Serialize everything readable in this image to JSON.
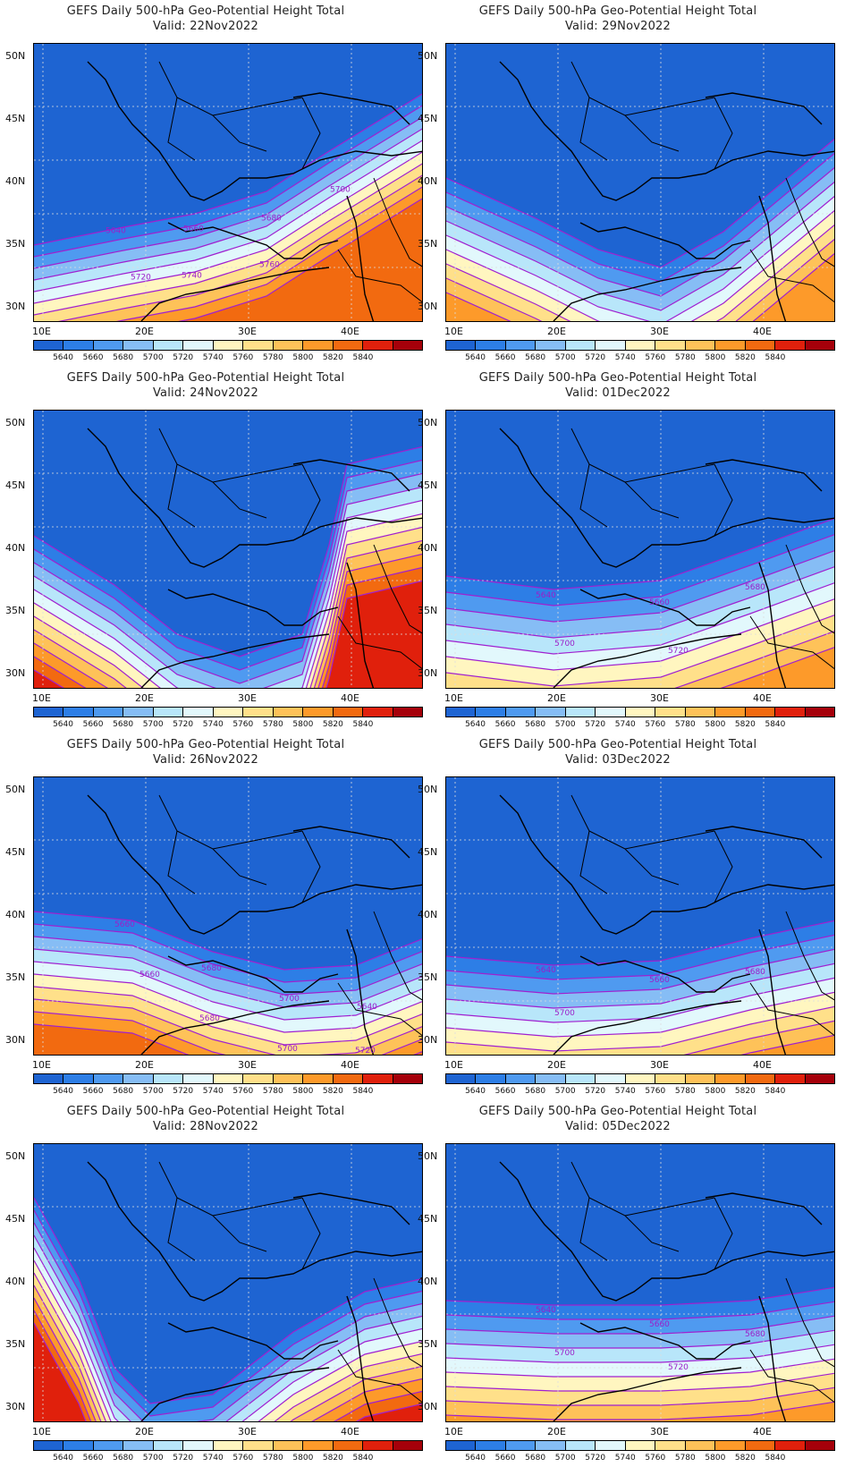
{
  "title_prefix": "GEFS Daily 500-hPa Geo-Potential Height Total",
  "valid_prefix": "Valid:",
  "lat_labels": [
    "50N",
    "45N",
    "40N",
    "35N",
    "30N"
  ],
  "lon_labels": [
    "10E",
    "20E",
    "30E",
    "40E"
  ],
  "colorbar": {
    "colors": [
      "#1e64d2",
      "#2d7ee6",
      "#4f9af0",
      "#86bdf5",
      "#b8e6fa",
      "#e2f8fc",
      "#fff6c0",
      "#ffe08a",
      "#fec259",
      "#fd9a2a",
      "#f26a10",
      "#e0200c",
      "#a5000a"
    ],
    "ticks": [
      "5640",
      "5660",
      "5680",
      "5700",
      "5720",
      "5740",
      "5760",
      "5780",
      "5800",
      "5820",
      "5840"
    ]
  },
  "panels": [
    {
      "valid": "22Nov2022",
      "contour_labels": [
        "5640",
        "5660",
        "5680",
        "5700",
        "5720",
        "5740",
        "5760"
      ]
    },
    {
      "valid": "29Nov2022",
      "contour_labels": []
    },
    {
      "valid": "24Nov2022",
      "contour_labels": []
    },
    {
      "valid": "01Dec2022",
      "contour_labels": [
        "5640",
        "5660",
        "5680",
        "5700",
        "5720"
      ]
    },
    {
      "valid": "26Nov2022",
      "contour_labels": [
        "5660",
        "5680",
        "5700",
        "5640",
        "5660",
        "5680",
        "5700",
        "5720"
      ]
    },
    {
      "valid": "03Dec2022",
      "contour_labels": [
        "5640",
        "5660",
        "5680",
        "5700"
      ]
    },
    {
      "valid": "28Nov2022",
      "contour_labels": []
    },
    {
      "valid": "05Dec2022",
      "contour_labels": [
        "5640",
        "5660",
        "5680",
        "5700",
        "5720"
      ]
    }
  ]
}
